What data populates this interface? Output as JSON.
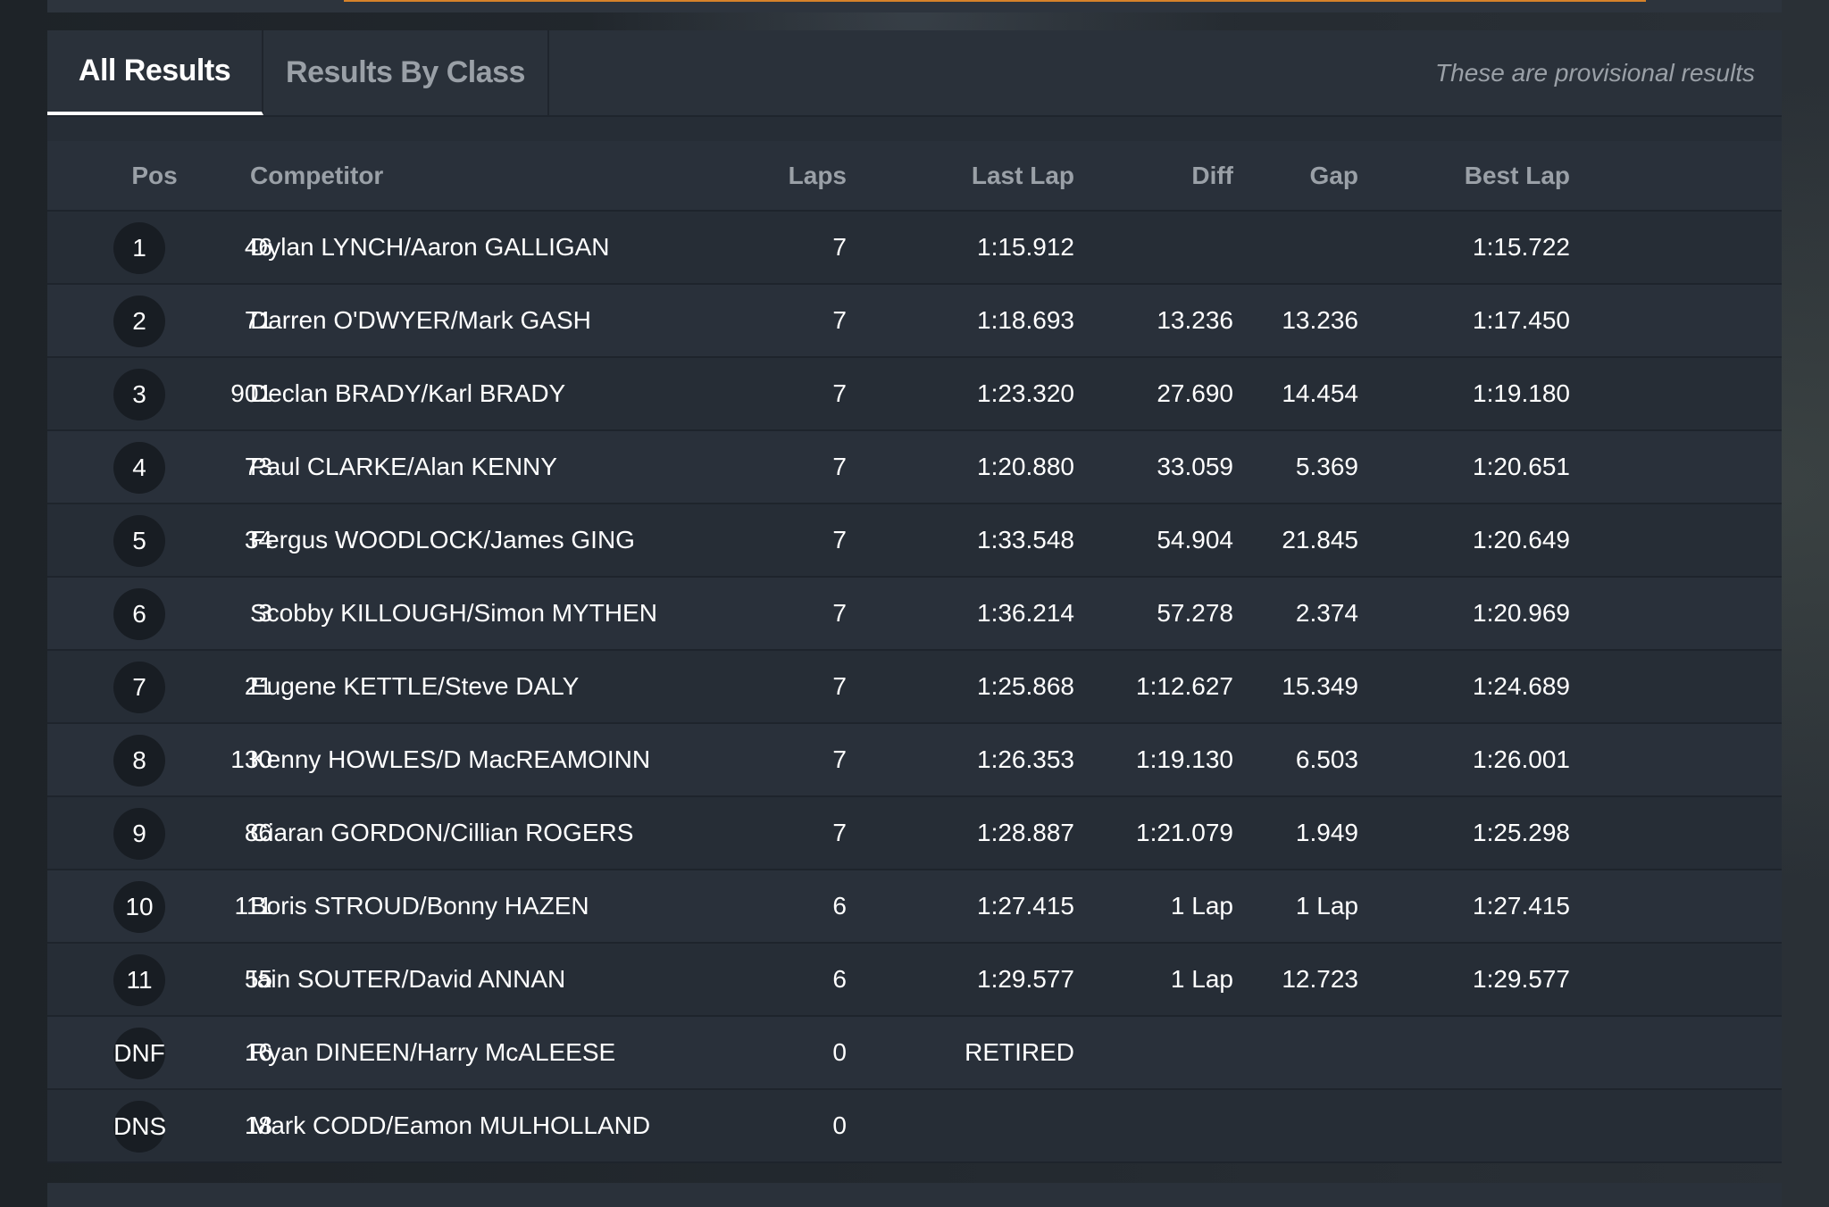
{
  "tabs": [
    {
      "label": "All Results",
      "active": true
    },
    {
      "label": "Results By Class",
      "active": false
    }
  ],
  "provisional_note": "These are provisional results",
  "columns": {
    "pos": "Pos",
    "competitor": "Competitor",
    "laps": "Laps",
    "last_lap": "Last Lap",
    "diff": "Diff",
    "gap": "Gap",
    "best_lap": "Best Lap"
  },
  "rows": [
    {
      "pos": "1",
      "num": "46",
      "competitor": "Dylan LYNCH/Aaron GALLIGAN",
      "laps": "7",
      "last_lap": "1:15.912",
      "diff": "",
      "gap": "",
      "best_lap": "1:15.722"
    },
    {
      "pos": "2",
      "num": "71",
      "competitor": "Darren O'DWYER/Mark GASH",
      "laps": "7",
      "last_lap": "1:18.693",
      "diff": "13.236",
      "gap": "13.236",
      "best_lap": "1:17.450"
    },
    {
      "pos": "3",
      "num": "901",
      "competitor": "Declan BRADY/Karl BRADY",
      "laps": "7",
      "last_lap": "1:23.320",
      "diff": "27.690",
      "gap": "14.454",
      "best_lap": "1:19.180"
    },
    {
      "pos": "4",
      "num": "73",
      "competitor": "Paul CLARKE/Alan KENNY",
      "laps": "7",
      "last_lap": "1:20.880",
      "diff": "33.059",
      "gap": "5.369",
      "best_lap": "1:20.651"
    },
    {
      "pos": "5",
      "num": "34",
      "competitor": "Fergus WOODLOCK/James GING",
      "laps": "7",
      "last_lap": "1:33.548",
      "diff": "54.904",
      "gap": "21.845",
      "best_lap": "1:20.649"
    },
    {
      "pos": "6",
      "num": "3",
      "competitor": "Scobby KILLOUGH/Simon MYTHEN",
      "laps": "7",
      "last_lap": "1:36.214",
      "diff": "57.278",
      "gap": "2.374",
      "best_lap": "1:20.969"
    },
    {
      "pos": "7",
      "num": "21",
      "competitor": "Eugene KETTLE/Steve DALY",
      "laps": "7",
      "last_lap": "1:25.868",
      "diff": "1:12.627",
      "gap": "15.349",
      "best_lap": "1:24.689"
    },
    {
      "pos": "8",
      "num": "130",
      "competitor": "Kenny HOWLES/D MacREAMOINN",
      "laps": "7",
      "last_lap": "1:26.353",
      "diff": "1:19.130",
      "gap": "6.503",
      "best_lap": "1:26.001"
    },
    {
      "pos": "9",
      "num": "86",
      "competitor": "Ciaran GORDON/Cillian ROGERS",
      "laps": "7",
      "last_lap": "1:28.887",
      "diff": "1:21.079",
      "gap": "1.949",
      "best_lap": "1:25.298"
    },
    {
      "pos": "10",
      "num": "111",
      "competitor": "Boris STROUD/Bonny HAZEN",
      "laps": "6",
      "last_lap": "1:27.415",
      "diff": "1 Lap",
      "gap": "1 Lap",
      "best_lap": "1:27.415"
    },
    {
      "pos": "11",
      "num": "55",
      "competitor": "Iain SOUTER/David ANNAN",
      "laps": "6",
      "last_lap": "1:29.577",
      "diff": "1 Lap",
      "gap": "12.723",
      "best_lap": "1:29.577"
    },
    {
      "pos": "DNF",
      "num": "16",
      "competitor": "Ryan DINEEN/Harry McALEESE",
      "laps": "0",
      "last_lap": "RETIRED",
      "diff": "",
      "gap": "",
      "best_lap": ""
    },
    {
      "pos": "DNS",
      "num": "18",
      "competitor": "Mark CODD/Eamon MULHOLLAND",
      "laps": "0",
      "last_lap": "",
      "diff": "",
      "gap": "",
      "best_lap": ""
    }
  ]
}
